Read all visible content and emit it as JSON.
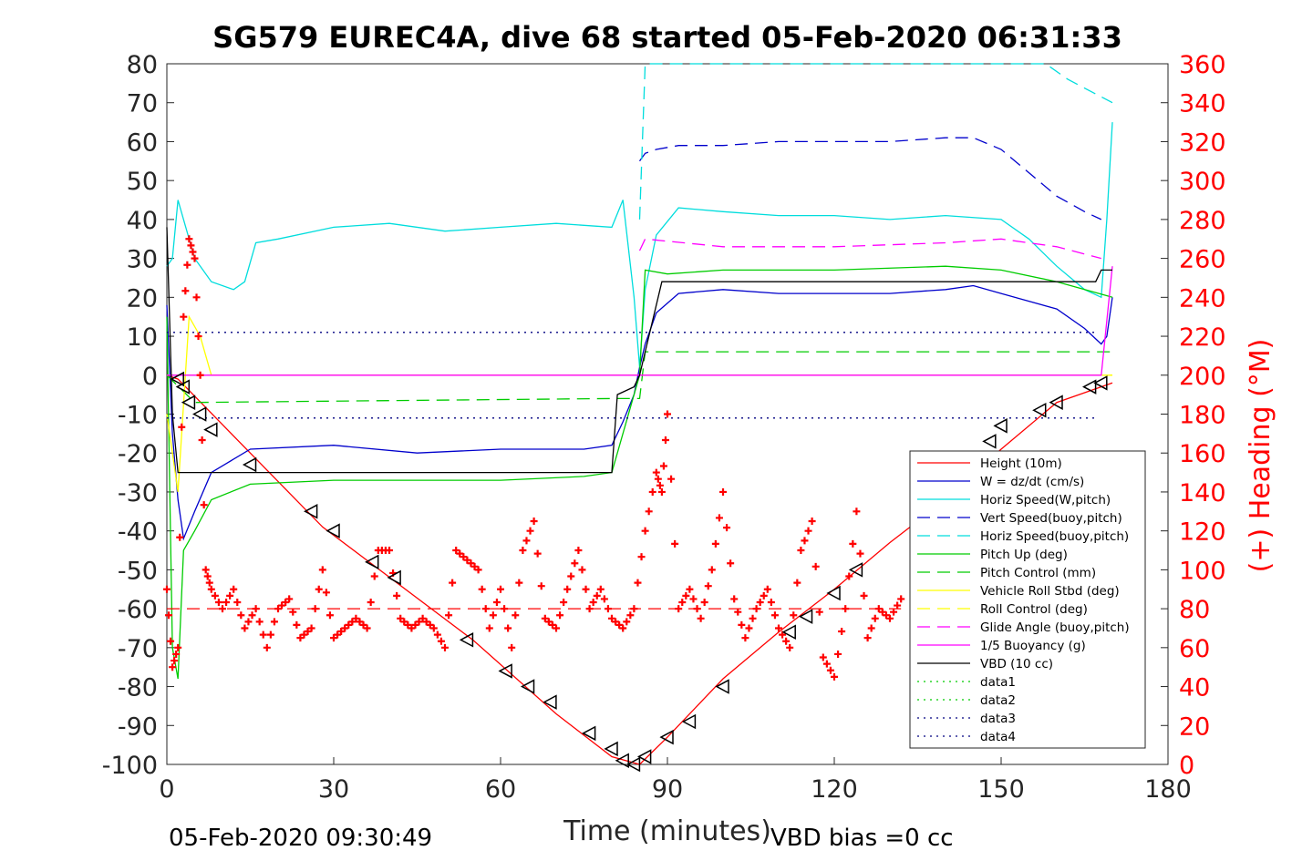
{
  "chart_data": {
    "type": "line",
    "title": "SG579 EUREC4A, dive 68 started 05-Feb-2020 06:31:33",
    "xlabel": "Time (minutes)",
    "ylabel": "",
    "ylabel_right": "(+) Heading (°M)",
    "xlim": [
      0,
      180
    ],
    "ylim": [
      -100,
      80
    ],
    "ylim_right": [
      0,
      360
    ],
    "xticks": [
      "0",
      "30",
      "60",
      "90",
      "120",
      "150",
      "180"
    ],
    "yticks": [
      "80",
      "70",
      "60",
      "50",
      "40",
      "30",
      "20",
      "10",
      "0",
      "-10",
      "-20",
      "-30",
      "-40",
      "-50",
      "-60",
      "-70",
      "-80",
      "-90",
      "-100"
    ],
    "yticks_right": [
      "360",
      "340",
      "320",
      "300",
      "280",
      "260",
      "240",
      "220",
      "200",
      "180",
      "160",
      "140",
      "120",
      "100",
      "80",
      "60",
      "40",
      "20",
      "0"
    ],
    "footer_left": "05-Feb-2020 09:30:49",
    "footer_right": "VBD bias =0 cc",
    "legend_position": "bottom-right",
    "series": [
      {
        "name": "Height (10m)",
        "color": "#ff0000",
        "style": "solid",
        "x": [
          0,
          2,
          28,
          55,
          70,
          80,
          85,
          90,
          100,
          110,
          120,
          130,
          140,
          150,
          160,
          166,
          170
        ],
        "y": [
          0,
          -1,
          -39,
          -68,
          -87,
          -98,
          -100,
          -93,
          -78,
          -66,
          -55,
          -43,
          -32,
          -19,
          -7,
          -4,
          -2
        ]
      },
      {
        "name": "W = dz/dt (cm/s)",
        "color": "#0000cc",
        "style": "solid",
        "x": [
          0,
          1,
          2,
          3,
          5,
          8,
          15,
          30,
          45,
          60,
          75,
          80,
          82,
          84,
          85,
          86,
          88,
          92,
          100,
          110,
          120,
          130,
          140,
          145,
          150,
          155,
          160,
          165,
          168,
          169,
          170
        ],
        "y": [
          18,
          -15,
          -32,
          -42,
          -35,
          -25,
          -19,
          -18,
          -20,
          -19,
          -19,
          -18,
          -12,
          -5,
          2,
          8,
          16,
          21,
          22,
          21,
          21,
          21,
          22,
          23,
          21,
          19,
          17,
          12,
          8,
          10,
          20
        ]
      },
      {
        "name": "Horiz Speed(W,pitch)",
        "color": "#00dddd",
        "style": "solid",
        "x": [
          0,
          1,
          2,
          3,
          5,
          8,
          12,
          14,
          16,
          20,
          30,
          40,
          50,
          60,
          70,
          80,
          82,
          84,
          85,
          86,
          88,
          92,
          100,
          110,
          120,
          130,
          140,
          150,
          155,
          160,
          165,
          168,
          169,
          170
        ],
        "y": [
          28,
          30,
          45,
          40,
          30,
          24,
          22,
          24,
          34,
          35,
          38,
          39,
          37,
          38,
          39,
          38,
          45,
          20,
          2,
          22,
          36,
          43,
          42,
          41,
          41,
          40,
          41,
          40,
          35,
          28,
          22,
          20,
          40,
          65
        ]
      },
      {
        "name": "Vert Speed(buoy,pitch)",
        "color": "#0000cc",
        "style": "dashed",
        "x": [
          85,
          86,
          88,
          92,
          100,
          110,
          120,
          130,
          140,
          145,
          150,
          155,
          160,
          165,
          168
        ],
        "y": [
          55,
          57,
          58,
          59,
          59,
          60,
          60,
          60,
          61,
          61,
          58,
          52,
          46,
          42,
          40
        ]
      },
      {
        "name": "Horiz Speed(buoy,pitch)",
        "color": "#00dddd",
        "style": "dashed",
        "x": [
          85,
          86,
          158,
          162,
          166,
          170
        ],
        "y": [
          40,
          80,
          80,
          76,
          73,
          70
        ]
      },
      {
        "name": "Pitch Up (deg)",
        "color": "#00cc00",
        "style": "solid",
        "x": [
          0,
          1,
          2,
          3,
          5,
          8,
          15,
          30,
          45,
          60,
          75,
          80,
          84,
          85,
          86,
          90,
          100,
          120,
          140,
          150,
          160,
          165,
          170
        ],
        "y": [
          15,
          -70,
          -78,
          -45,
          -40,
          -32,
          -28,
          -27,
          -27,
          -27,
          -26,
          -25,
          -5,
          0,
          27,
          26,
          27,
          27,
          28,
          27,
          24,
          22,
          20
        ]
      },
      {
        "name": "Pitch Control (mm)",
        "color": "#00cc00",
        "style": "dashed",
        "x": [
          0,
          5,
          80,
          85,
          86,
          170
        ],
        "y": [
          0,
          -7,
          -6,
          -6,
          6,
          6
        ]
      },
      {
        "name": "Vehicle Roll Stbd (deg)",
        "color": "#ffff00",
        "style": "solid",
        "x": [
          0,
          2,
          4,
          6,
          8,
          10,
          30,
          60,
          85,
          90,
          120,
          150,
          170
        ],
        "y": [
          -10,
          -30,
          15,
          10,
          0,
          0,
          0,
          0,
          0,
          0,
          0,
          0,
          0
        ]
      },
      {
        "name": "Roll Control (deg)",
        "color": "#ffff00",
        "style": "dashed",
        "x": [
          0,
          170
        ],
        "y": [
          0,
          0
        ]
      },
      {
        "name": "Glide Angle (buoy,pitch)",
        "color": "#ff00ff",
        "style": "dashed",
        "x": [
          85,
          86,
          100,
          120,
          140,
          150,
          160,
          168
        ],
        "y": [
          32,
          35,
          33,
          33,
          34,
          35,
          33,
          30
        ]
      },
      {
        "name": "1/5 Buoyancy (g)",
        "color": "#ff00ff",
        "style": "solid",
        "x": [
          0,
          80,
          85,
          168,
          170
        ],
        "y": [
          0,
          0,
          0,
          0,
          28
        ]
      },
      {
        "name": "VBD (10 cc)",
        "color": "#000000",
        "style": "solid",
        "x": [
          0,
          1,
          2,
          80,
          81,
          84,
          85,
          89,
          167,
          168,
          170
        ],
        "y": [
          38,
          -10,
          -25,
          -25,
          -5,
          -3,
          0,
          24,
          24,
          27,
          27
        ]
      },
      {
        "name": "data1",
        "color": "#00cc00",
        "style": "dotted",
        "x": [],
        "y": []
      },
      {
        "name": "data2",
        "color": "#00cc00",
        "style": "dotted",
        "x": [],
        "y": []
      },
      {
        "name": "data3",
        "color": "#000080",
        "style": "dotted",
        "x": [
          0,
          167
        ],
        "y": [
          11,
          11
        ]
      },
      {
        "name": "data4",
        "color": "#000080",
        "style": "dotted",
        "x": [
          0,
          167
        ],
        "y": [
          -11,
          -11
        ]
      }
    ],
    "heading": {
      "axis": "right",
      "color": "#ff0000",
      "marker": "+",
      "x": [
        0,
        1,
        2,
        3,
        4,
        5,
        6,
        7,
        8,
        10,
        12,
        14,
        16,
        18,
        20,
        22,
        24,
        26,
        28,
        30,
        32,
        34,
        36,
        38,
        40,
        42,
        44,
        46,
        48,
        50,
        52,
        54,
        56,
        58,
        60,
        62,
        64,
        66,
        68,
        70,
        72,
        74,
        76,
        78,
        80,
        82,
        84,
        86,
        88,
        89,
        90,
        92,
        94,
        96,
        98,
        100,
        102,
        104,
        106,
        108,
        110,
        112,
        114,
        116,
        118,
        120,
        122,
        124,
        126,
        128,
        130,
        132
      ],
      "y": [
        90,
        50,
        60,
        230,
        270,
        260,
        200,
        100,
        90,
        80,
        90,
        70,
        80,
        60,
        80,
        85,
        65,
        70,
        100,
        65,
        70,
        75,
        70,
        110,
        110,
        75,
        70,
        75,
        70,
        60,
        110,
        105,
        100,
        70,
        90,
        60,
        110,
        125,
        75,
        70,
        90,
        110,
        80,
        90,
        75,
        70,
        80,
        120,
        150,
        140,
        180,
        80,
        90,
        75,
        100,
        140,
        85,
        65,
        80,
        90,
        70,
        60,
        110,
        125,
        55,
        45,
        80,
        130,
        65,
        80,
        75,
        85
      ]
    },
    "heading_dashed": {
      "color": "#ff0000",
      "style": "dashed",
      "y_right": 80,
      "x": [
        0,
        132
      ]
    },
    "markers": {
      "color": "#000000",
      "shape": "triangle-left",
      "x": [
        2,
        3,
        4,
        6,
        8,
        15,
        26,
        30,
        37,
        41,
        54,
        61,
        65,
        69,
        76,
        80,
        82,
        84,
        86,
        90,
        94,
        100,
        112,
        115,
        120,
        124,
        148,
        150,
        157,
        160,
        166,
        168
      ],
      "y": [
        -1,
        -3,
        -7,
        -10,
        -14,
        -23,
        -35,
        -40,
        -48,
        -52,
        -68,
        -76,
        -80,
        -84,
        -92,
        -96,
        -99,
        -100,
        -98,
        -93,
        -89,
        -80,
        -66,
        -62,
        -56,
        -50,
        -17,
        -13,
        -9,
        -7,
        -3,
        -2
      ]
    }
  }
}
